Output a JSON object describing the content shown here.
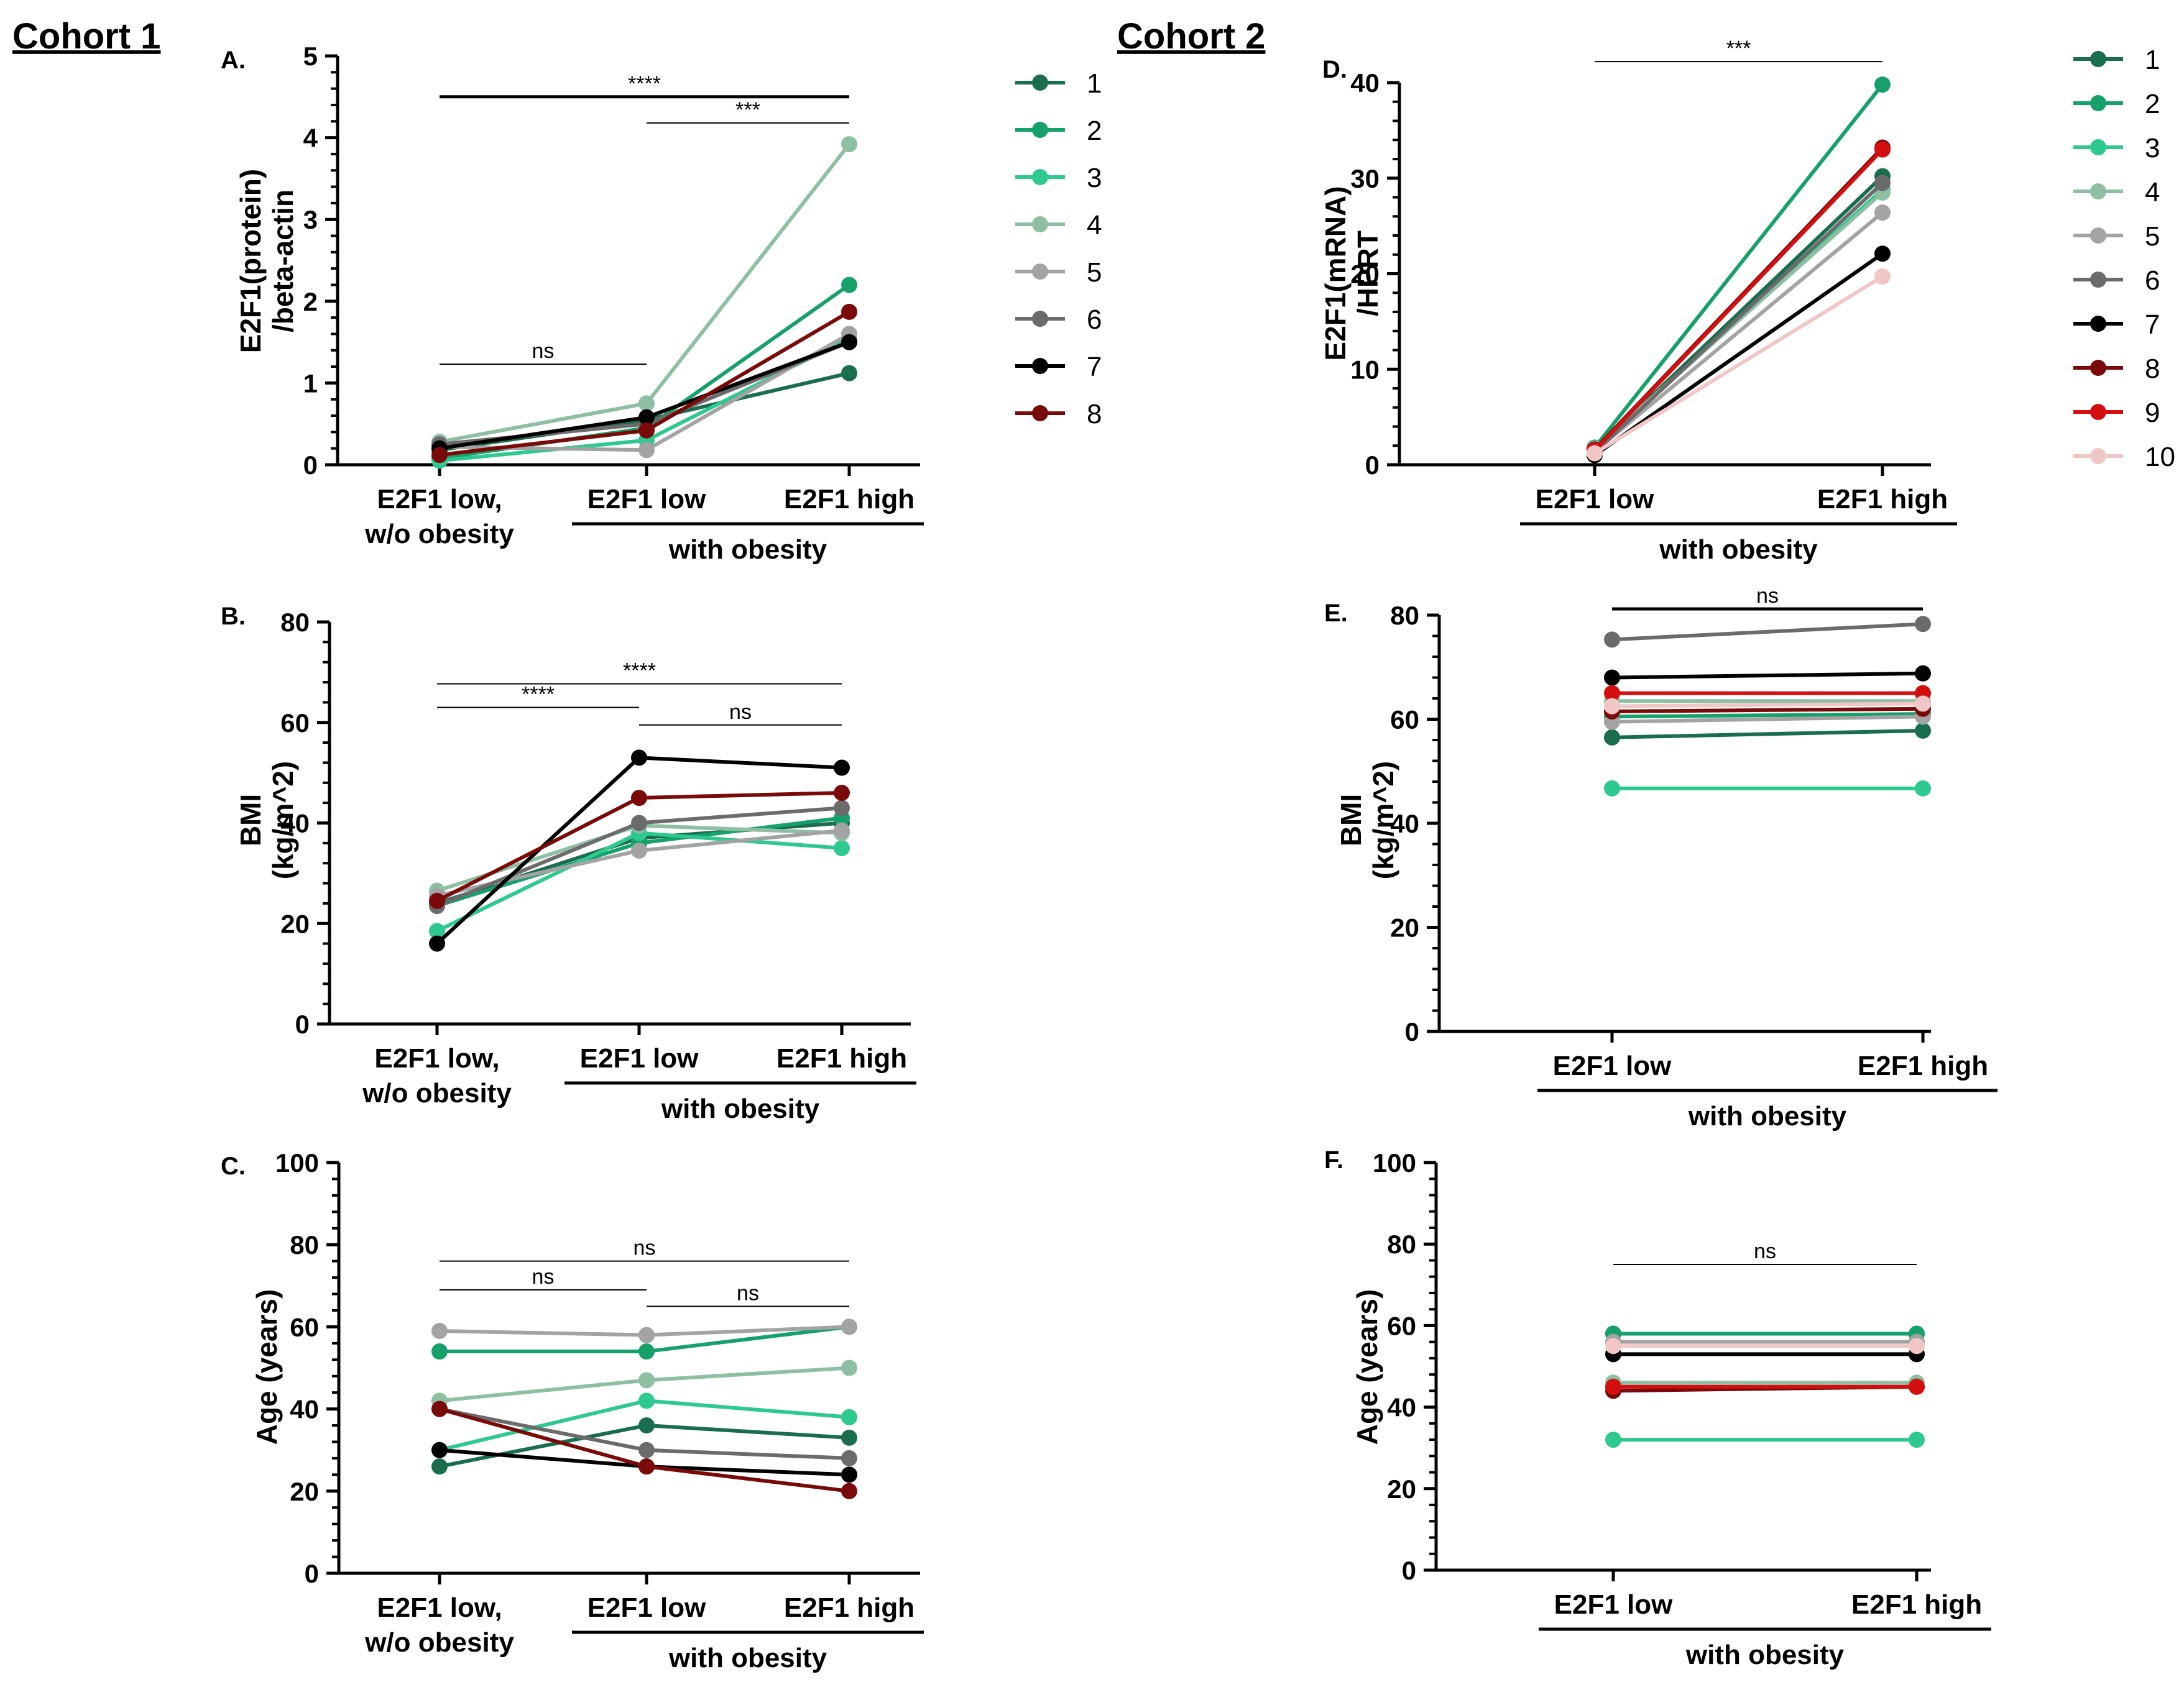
{
  "headings": {
    "cohort1": "Cohort 1",
    "cohort2": "Cohort 2"
  },
  "colors": {
    "s1": "#1a6e4e",
    "s2": "#16a06a",
    "s3": "#2ec98e",
    "s4": "#8fbfa2",
    "s5": "#a3a3a3",
    "s6": "#6b6b6b",
    "s7": "#000000",
    "s8": "#7a0a0a",
    "s9": "#d40f0f",
    "s10": "#f0c6c6"
  },
  "chart_data": [
    {
      "id": "A",
      "panel_label": "A.",
      "type": "line",
      "ylabel": [
        "E2F1(protein)",
        "/beta-actin"
      ],
      "ylim": [
        0,
        5
      ],
      "yticks": [
        0,
        1,
        2,
        3,
        4,
        5
      ],
      "categories": [
        [
          "E2F1 low,",
          "w/o obesity"
        ],
        [
          "E2F1 low"
        ],
        [
          "E2F1 high"
        ]
      ],
      "group_label": "with obesity",
      "series": [
        {
          "name": "1",
          "color": "s1",
          "values": [
            0.18,
            0.55,
            1.12
          ]
        },
        {
          "name": "2",
          "color": "s2",
          "values": [
            0.08,
            0.45,
            2.2
          ]
        },
        {
          "name": "3",
          "color": "s3",
          "values": [
            0.05,
            0.3,
            1.55
          ]
        },
        {
          "name": "4",
          "color": "s4",
          "values": [
            0.28,
            0.75,
            3.92
          ]
        },
        {
          "name": "5",
          "color": "s5",
          "values": [
            0.22,
            0.18,
            1.6
          ]
        },
        {
          "name": "6",
          "color": "s6",
          "values": [
            0.25,
            0.5,
            1.5
          ]
        },
        {
          "name": "7",
          "color": "s7",
          "values": [
            0.2,
            0.58,
            1.5
          ]
        },
        {
          "name": "8",
          "color": "s8",
          "values": [
            0.12,
            0.42,
            1.87
          ]
        }
      ],
      "significance": [
        {
          "from": 0,
          "to": 2,
          "label": "****",
          "y": 4.5,
          "weight": "bold"
        },
        {
          "from": 1,
          "to": 2,
          "label": "***",
          "y": 4.18,
          "weight": "thin"
        },
        {
          "from": 0,
          "to": 1,
          "label": "ns",
          "y": 1.23,
          "weight": "thin"
        }
      ]
    },
    {
      "id": "B",
      "panel_label": "B.",
      "type": "line",
      "ylabel": [
        "BMI",
        "(kg/m^2)"
      ],
      "ylim": [
        0,
        80
      ],
      "yticks": [
        0,
        20,
        40,
        60,
        80
      ],
      "categories": [
        [
          "E2F1 low,",
          "w/o obesity"
        ],
        [
          "E2F1 low"
        ],
        [
          "E2F1 high"
        ]
      ],
      "group_label": "with obesity",
      "series": [
        {
          "name": "1",
          "color": "s1",
          "values": [
            24,
            37,
            40
          ]
        },
        {
          "name": "2",
          "color": "s2",
          "values": [
            23.5,
            36,
            41
          ]
        },
        {
          "name": "3",
          "color": "s3",
          "values": [
            18.5,
            38,
            35
          ]
        },
        {
          "name": "4",
          "color": "s4",
          "values": [
            26.5,
            39.5,
            38
          ]
        },
        {
          "name": "5",
          "color": "s5",
          "values": [
            25.5,
            34.5,
            38.5
          ]
        },
        {
          "name": "6",
          "color": "s6",
          "values": [
            23.5,
            40,
            43
          ]
        },
        {
          "name": "7",
          "color": "s7",
          "values": [
            16,
            53,
            51
          ]
        },
        {
          "name": "8",
          "color": "s8",
          "values": [
            24.5,
            45,
            46
          ]
        }
      ],
      "significance": [
        {
          "from": 0,
          "to": 2,
          "label": "****",
          "y": 67.7,
          "weight": "thin"
        },
        {
          "from": 0,
          "to": 1,
          "label": "****",
          "y": 63,
          "weight": "thin"
        },
        {
          "from": 1,
          "to": 2,
          "label": "ns",
          "y": 59.5,
          "weight": "thin"
        }
      ]
    },
    {
      "id": "C",
      "panel_label": "C.",
      "type": "line",
      "ylabel": [
        "Age (years)"
      ],
      "ylim": [
        0,
        100
      ],
      "yticks": [
        0,
        20,
        40,
        60,
        80,
        100
      ],
      "categories": [
        [
          "E2F1 low,",
          "w/o obesity"
        ],
        [
          "E2F1 low"
        ],
        [
          "E2F1 high"
        ]
      ],
      "group_label": "with obesity",
      "series": [
        {
          "name": "1",
          "color": "s1",
          "values": [
            26,
            36,
            33
          ]
        },
        {
          "name": "2",
          "color": "s2",
          "values": [
            54,
            54,
            60
          ]
        },
        {
          "name": "3",
          "color": "s3",
          "values": [
            30,
            42,
            38
          ]
        },
        {
          "name": "4",
          "color": "s4",
          "values": [
            42,
            47,
            50
          ]
        },
        {
          "name": "5",
          "color": "s5",
          "values": [
            59,
            58,
            60
          ]
        },
        {
          "name": "6",
          "color": "s6",
          "values": [
            40,
            30,
            28
          ]
        },
        {
          "name": "7",
          "color": "s7",
          "values": [
            30,
            26,
            24
          ]
        },
        {
          "name": "8",
          "color": "s8",
          "values": [
            40,
            26,
            20
          ]
        }
      ],
      "significance": [
        {
          "from": 0,
          "to": 2,
          "label": "ns",
          "y": 76,
          "weight": "thin"
        },
        {
          "from": 0,
          "to": 1,
          "label": "ns",
          "y": 69,
          "weight": "thin"
        },
        {
          "from": 1,
          "to": 2,
          "label": "ns",
          "y": 65,
          "weight": "thin"
        }
      ]
    },
    {
      "id": "D",
      "panel_label": "D.",
      "type": "line",
      "ylabel": [
        "E2F1(mRNA)",
        "/HPRT"
      ],
      "ylim": [
        0,
        40
      ],
      "yticks": [
        0,
        10,
        20,
        30,
        40
      ],
      "categories": [
        [
          "E2F1 low"
        ],
        [
          "E2F1 high"
        ]
      ],
      "group_label": "with obesity",
      "series": [
        {
          "name": "1",
          "color": "s1",
          "values": [
            1.5,
            30.2
          ]
        },
        {
          "name": "2",
          "color": "s2",
          "values": [
            1.8,
            39.8
          ]
        },
        {
          "name": "3",
          "color": "s3",
          "values": [
            1.6,
            28.8
          ]
        },
        {
          "name": "4",
          "color": "s4",
          "values": [
            1.7,
            28.5
          ]
        },
        {
          "name": "5",
          "color": "s5",
          "values": [
            1.4,
            26.4
          ]
        },
        {
          "name": "6",
          "color": "s6",
          "values": [
            1.3,
            29.5
          ]
        },
        {
          "name": "7",
          "color": "s7",
          "values": [
            1,
            22.1
          ]
        },
        {
          "name": "8",
          "color": "s8",
          "values": [
            1.6,
            33.2
          ]
        },
        {
          "name": "9",
          "color": "s9",
          "values": [
            1.5,
            33
          ]
        },
        {
          "name": "10",
          "color": "s10",
          "values": [
            1.2,
            19.7
          ]
        }
      ],
      "significance": [
        {
          "from": 0,
          "to": 1,
          "label": "***",
          "y": 42.2,
          "weight": "thin"
        }
      ]
    },
    {
      "id": "E",
      "panel_label": "E.",
      "type": "line",
      "ylabel": [
        "BMI",
        "(kg/m^2)"
      ],
      "ylim": [
        0,
        80
      ],
      "yticks": [
        0,
        20,
        40,
        60,
        80
      ],
      "categories": [
        [
          "E2F1 low"
        ],
        [
          "E2F1 high"
        ]
      ],
      "group_label": "with obesity",
      "series": [
        {
          "name": "1",
          "color": "s1",
          "values": [
            56.5,
            57.8
          ]
        },
        {
          "name": "2",
          "color": "s2",
          "values": [
            60.5,
            61
          ]
        },
        {
          "name": "3",
          "color": "s3",
          "values": [
            46.7,
            46.7
          ]
        },
        {
          "name": "4",
          "color": "s4",
          "values": [
            63.5,
            63.5
          ]
        },
        {
          "name": "5",
          "color": "s5",
          "values": [
            59.5,
            60.5
          ]
        },
        {
          "name": "6",
          "color": "s6",
          "values": [
            75.3,
            78.3
          ]
        },
        {
          "name": "7",
          "color": "s7",
          "values": [
            68,
            68.8
          ]
        },
        {
          "name": "8",
          "color": "s8",
          "values": [
            61.5,
            62
          ]
        },
        {
          "name": "9",
          "color": "s9",
          "values": [
            65,
            65
          ]
        },
        {
          "name": "10",
          "color": "s10",
          "values": [
            62.5,
            63
          ]
        }
      ],
      "significance": [
        {
          "from": 0,
          "to": 1,
          "label": "ns",
          "y": 81.2,
          "weight": "bold"
        }
      ]
    },
    {
      "id": "F",
      "panel_label": "F.",
      "type": "line",
      "ylabel": [
        "Age (years)"
      ],
      "ylim": [
        0,
        100
      ],
      "yticks": [
        0,
        20,
        40,
        60,
        80,
        100
      ],
      "categories": [
        [
          "E2F1 low"
        ],
        [
          "E2F1 high"
        ]
      ],
      "group_label": "with obesity",
      "series": [
        {
          "name": "1",
          "color": "s1",
          "values": [
            58,
            58
          ]
        },
        {
          "name": "2",
          "color": "s2",
          "values": [
            58,
            58
          ]
        },
        {
          "name": "3",
          "color": "s3",
          "values": [
            32,
            32
          ]
        },
        {
          "name": "4",
          "color": "s4",
          "values": [
            46,
            46
          ]
        },
        {
          "name": "5",
          "color": "s5",
          "values": [
            56,
            56
          ]
        },
        {
          "name": "6",
          "color": "s6",
          "values": [
            45,
            45
          ]
        },
        {
          "name": "7",
          "color": "s7",
          "values": [
            53,
            53
          ]
        },
        {
          "name": "8",
          "color": "s8",
          "values": [
            44,
            45
          ]
        },
        {
          "name": "9",
          "color": "s9",
          "values": [
            45,
            45
          ]
        },
        {
          "name": "10",
          "color": "s10",
          "values": [
            55,
            55
          ]
        }
      ],
      "significance": [
        {
          "from": 0,
          "to": 1,
          "label": "ns",
          "y": 75,
          "weight": "thin"
        }
      ]
    }
  ],
  "legends": {
    "cohort1": [
      "1",
      "2",
      "3",
      "4",
      "5",
      "6",
      "7",
      "8"
    ],
    "cohort2": [
      "1",
      "2",
      "3",
      "4",
      "5",
      "6",
      "7",
      "8",
      "9",
      "10"
    ]
  }
}
